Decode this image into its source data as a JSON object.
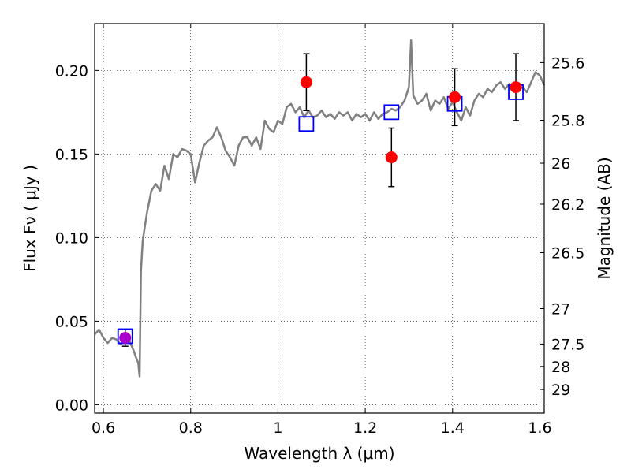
{
  "chart_data": {
    "type": "scatter",
    "xlabel": "Wavelength  λ (μm)",
    "ylabel": "Flux  Fν (  μJy )",
    "ylabel_right": "Magnitude (AB)",
    "xlim": [
      0.58,
      1.61
    ],
    "ylim": [
      -0.005,
      0.228
    ],
    "grid": true,
    "x_ticks": [
      {
        "value": 0.6,
        "label": "0.6"
      },
      {
        "value": 0.8,
        "label": "0.8"
      },
      {
        "value": 1.0,
        "label": "1"
      },
      {
        "value": 1.2,
        "label": "1.2"
      },
      {
        "value": 1.4,
        "label": "1.4"
      },
      {
        "value": 1.6,
        "label": "1.6"
      }
    ],
    "y_ticks": [
      {
        "value": 0.0,
        "label": "0.00"
      },
      {
        "value": 0.05,
        "label": "0.05"
      },
      {
        "value": 0.1,
        "label": "0.10"
      },
      {
        "value": 0.15,
        "label": "0.15"
      },
      {
        "value": 0.2,
        "label": "0.20"
      }
    ],
    "right_ticks": [
      {
        "flux": 0.2047,
        "label": "25.6"
      },
      {
        "flux": 0.1702,
        "label": "25.8"
      },
      {
        "flux": 0.1445,
        "label": "26"
      },
      {
        "flux": 0.12,
        "label": "26.2"
      },
      {
        "flux": 0.091,
        "label": "26.5"
      },
      {
        "flux": 0.0575,
        "label": "27"
      },
      {
        "flux": 0.0363,
        "label": "27.5"
      },
      {
        "flux": 0.0229,
        "label": "28"
      },
      {
        "flux": 0.0091,
        "label": "29"
      }
    ],
    "series": [
      {
        "kind": "line",
        "color": "#808080",
        "points": [
          [
            0.58,
            0.042
          ],
          [
            0.59,
            0.045
          ],
          [
            0.6,
            0.04
          ],
          [
            0.61,
            0.037
          ],
          [
            0.62,
            0.04
          ],
          [
            0.63,
            0.039
          ],
          [
            0.64,
            0.036
          ],
          [
            0.65,
            0.04
          ],
          [
            0.66,
            0.038
          ],
          [
            0.67,
            0.032
          ],
          [
            0.675,
            0.028
          ],
          [
            0.68,
            0.025
          ],
          [
            0.683,
            0.017
          ],
          [
            0.686,
            0.08
          ],
          [
            0.69,
            0.098
          ],
          [
            0.7,
            0.115
          ],
          [
            0.71,
            0.128
          ],
          [
            0.72,
            0.132
          ],
          [
            0.73,
            0.128
          ],
          [
            0.74,
            0.143
          ],
          [
            0.75,
            0.135
          ],
          [
            0.76,
            0.15
          ],
          [
            0.77,
            0.148
          ],
          [
            0.78,
            0.153
          ],
          [
            0.79,
            0.152
          ],
          [
            0.8,
            0.15
          ],
          [
            0.81,
            0.133
          ],
          [
            0.82,
            0.145
          ],
          [
            0.83,
            0.155
          ],
          [
            0.84,
            0.158
          ],
          [
            0.85,
            0.16
          ],
          [
            0.86,
            0.166
          ],
          [
            0.87,
            0.16
          ],
          [
            0.88,
            0.152
          ],
          [
            0.89,
            0.148
          ],
          [
            0.9,
            0.143
          ],
          [
            0.91,
            0.155
          ],
          [
            0.92,
            0.16
          ],
          [
            0.93,
            0.16
          ],
          [
            0.94,
            0.155
          ],
          [
            0.95,
            0.16
          ],
          [
            0.96,
            0.153
          ],
          [
            0.97,
            0.17
          ],
          [
            0.98,
            0.165
          ],
          [
            0.99,
            0.163
          ],
          [
            1.0,
            0.17
          ],
          [
            1.01,
            0.168
          ],
          [
            1.02,
            0.178
          ],
          [
            1.03,
            0.18
          ],
          [
            1.04,
            0.175
          ],
          [
            1.05,
            0.178
          ],
          [
            1.06,
            0.172
          ],
          [
            1.07,
            0.176
          ],
          [
            1.08,
            0.172
          ],
          [
            1.09,
            0.173
          ],
          [
            1.1,
            0.176
          ],
          [
            1.11,
            0.172
          ],
          [
            1.12,
            0.174
          ],
          [
            1.13,
            0.171
          ],
          [
            1.14,
            0.175
          ],
          [
            1.15,
            0.173
          ],
          [
            1.16,
            0.175
          ],
          [
            1.17,
            0.17
          ],
          [
            1.18,
            0.174
          ],
          [
            1.19,
            0.172
          ],
          [
            1.2,
            0.174
          ],
          [
            1.21,
            0.17
          ],
          [
            1.22,
            0.175
          ],
          [
            1.23,
            0.171
          ],
          [
            1.24,
            0.174
          ],
          [
            1.25,
            0.175
          ],
          [
            1.26,
            0.177
          ],
          [
            1.27,
            0.176
          ],
          [
            1.28,
            0.178
          ],
          [
            1.29,
            0.182
          ],
          [
            1.3,
            0.19
          ],
          [
            1.305,
            0.218
          ],
          [
            1.31,
            0.185
          ],
          [
            1.32,
            0.18
          ],
          [
            1.33,
            0.182
          ],
          [
            1.34,
            0.186
          ],
          [
            1.35,
            0.176
          ],
          [
            1.36,
            0.182
          ],
          [
            1.37,
            0.18
          ],
          [
            1.38,
            0.184
          ],
          [
            1.39,
            0.177
          ],
          [
            1.4,
            0.181
          ],
          [
            1.41,
            0.175
          ],
          [
            1.42,
            0.17
          ],
          [
            1.43,
            0.178
          ],
          [
            1.44,
            0.173
          ],
          [
            1.45,
            0.182
          ],
          [
            1.46,
            0.186
          ],
          [
            1.47,
            0.184
          ],
          [
            1.48,
            0.189
          ],
          [
            1.49,
            0.187
          ],
          [
            1.5,
            0.191
          ],
          [
            1.51,
            0.193
          ],
          [
            1.52,
            0.189
          ],
          [
            1.53,
            0.192
          ],
          [
            1.54,
            0.19
          ],
          [
            1.55,
            0.188
          ],
          [
            1.56,
            0.19
          ],
          [
            1.57,
            0.187
          ],
          [
            1.58,
            0.193
          ],
          [
            1.59,
            0.199
          ],
          [
            1.6,
            0.197
          ],
          [
            1.61,
            0.191
          ]
        ]
      },
      {
        "kind": "points",
        "marker": "open-square",
        "color": "#0000ff",
        "points": [
          {
            "x": 0.65,
            "y": 0.041
          },
          {
            "x": 1.065,
            "y": 0.168
          },
          {
            "x": 1.26,
            "y": 0.175
          },
          {
            "x": 1.405,
            "y": 0.18
          },
          {
            "x": 1.545,
            "y": 0.187
          }
        ]
      },
      {
        "kind": "points",
        "marker": "filled-circle",
        "errorbars": true,
        "points": [
          {
            "x": 0.65,
            "y": 0.04,
            "err": 0.005,
            "color": "#aa00cc"
          },
          {
            "x": 1.065,
            "y": 0.193,
            "err": 0.017,
            "color": "#ff0000"
          },
          {
            "x": 1.26,
            "y": 0.148,
            "err": 0.0175,
            "color": "#ff0000"
          },
          {
            "x": 1.405,
            "y": 0.184,
            "err": 0.017,
            "color": "#ff0000"
          },
          {
            "x": 1.545,
            "y": 0.19,
            "err": 0.02,
            "color": "#ff0000"
          }
        ]
      }
    ]
  }
}
